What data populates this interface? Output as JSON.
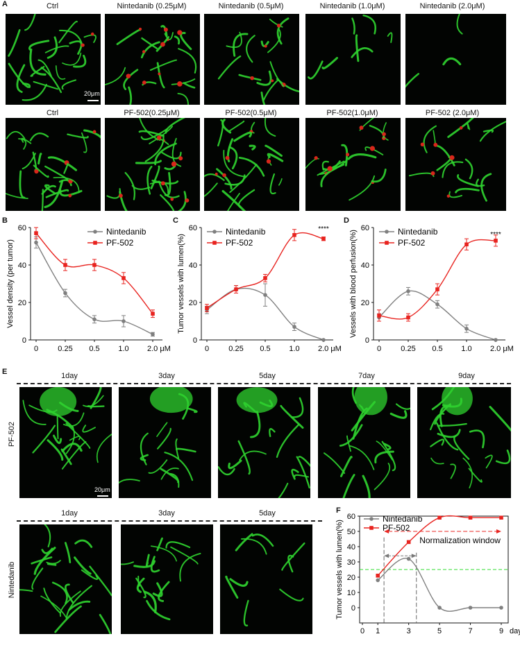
{
  "panels": {
    "A": "A",
    "B": "B",
    "C": "C",
    "D": "D",
    "E": "E",
    "F": "F"
  },
  "row1_labels": [
    "Ctrl",
    "Nintedanib (0.25μM)",
    "Nintedanib (0.5μM)",
    "Nintedanib (1.0μM)",
    "Nintedanib (2.0μM)"
  ],
  "row2_labels": [
    "Ctrl",
    "PF-502(0.25μM)",
    "PF-502(0.5μM)",
    "PF-502(1.0μM)",
    "PF-502 (2.0μM)"
  ],
  "scalebar_A": "20μm",
  "scalebar_E": "20μm",
  "e_days_top": [
    "1day",
    "3day",
    "5day",
    "7day",
    "9day"
  ],
  "e_days_bottom": [
    "1day",
    "3day",
    "5day"
  ],
  "e_row_labels": {
    "top": "PF-502",
    "bottom": "Nintedanib"
  },
  "colors": {
    "nintedanib": "#7f7f7f",
    "pf502": "#e8231f",
    "green_line": "#33dd33",
    "vessel_green": "#2fd12f",
    "vessel_red": "#d8271b"
  },
  "chart_data": [
    {
      "id": "B",
      "type": "line",
      "ylabel": "Vessel density (per tumor)",
      "categories": [
        "0",
        "0.25",
        "0.5",
        "1.0",
        "2.0 μM"
      ],
      "ylim": [
        0,
        60
      ],
      "yticks": [
        0,
        20,
        40,
        60
      ],
      "legend": "top-right",
      "series": [
        {
          "name": "Nintedanib",
          "values": [
            52,
            25,
            11,
            10,
            3
          ],
          "errors": [
            3,
            2,
            2,
            3,
            1
          ]
        },
        {
          "name": "PF-502",
          "values": [
            57,
            40,
            40,
            33,
            14
          ],
          "errors": [
            3,
            3,
            3,
            3,
            2
          ]
        }
      ]
    },
    {
      "id": "C",
      "type": "line",
      "ylabel": "Tumor vessels with lumen(%)",
      "categories": [
        "0",
        "0.25",
        "0.5",
        "1.0",
        "2.0 μM"
      ],
      "ylim": [
        0,
        60
      ],
      "yticks": [
        0,
        20,
        40,
        60
      ],
      "legend": "top-left",
      "annotation": "****",
      "series": [
        {
          "name": "Nintedanib",
          "values": [
            16,
            27,
            24,
            7,
            0
          ],
          "errors": [
            2,
            2,
            6,
            2,
            0
          ]
        },
        {
          "name": "PF-502",
          "values": [
            17,
            27,
            33,
            56,
            54
          ],
          "errors": [
            2,
            2,
            2,
            3,
            1
          ]
        }
      ]
    },
    {
      "id": "D",
      "type": "line",
      "ylabel": "Vessels with blood perfusion(%)",
      "categories": [
        "0",
        "0.25",
        "0.5",
        "1.0",
        "2.0 μM"
      ],
      "ylim": [
        0,
        60
      ],
      "yticks": [
        0,
        20,
        40,
        60
      ],
      "legend": "top-left",
      "annotation": "****",
      "series": [
        {
          "name": "Nintedanib",
          "values": [
            12,
            26,
            19,
            6,
            0
          ],
          "errors": [
            2,
            2,
            2,
            2,
            0
          ]
        },
        {
          "name": "PF-502",
          "values": [
            13,
            12,
            27,
            51,
            53
          ],
          "errors": [
            3,
            2,
            3,
            3,
            3
          ]
        }
      ]
    },
    {
      "id": "F",
      "type": "line",
      "ylabel": "Tumor vessels with lumen(%)",
      "xlabel": "day",
      "x": [
        1,
        3,
        5,
        7,
        9
      ],
      "xlim": [
        0,
        9
      ],
      "xticks": [
        0,
        1,
        3,
        5,
        7,
        9
      ],
      "ylim": [
        -10,
        60
      ],
      "yticks": [
        0,
        10,
        20,
        30,
        40,
        50,
        60
      ],
      "legend": "top-left",
      "annotation": "Normalization window",
      "reference_line": 25,
      "series": [
        {
          "name": "Nintedanib",
          "values": [
            18,
            32,
            0,
            0,
            0
          ]
        },
        {
          "name": "PF-502",
          "values": [
            21,
            43,
            59,
            59,
            59
          ]
        }
      ]
    }
  ]
}
